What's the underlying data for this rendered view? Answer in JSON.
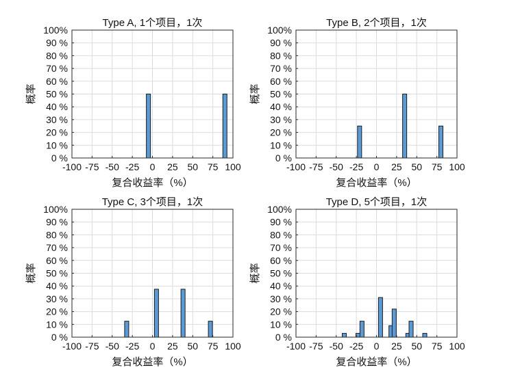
{
  "chart_data": [
    {
      "type": "bar",
      "title": "Type A, 1个项目，1次",
      "xlabel": "复合收益率（%）",
      "ylabel": "概率",
      "xlim": [
        -100,
        100
      ],
      "ylim": [
        0,
        100
      ],
      "xticks": [
        -100,
        -75,
        -50,
        -25,
        0,
        25,
        50,
        75,
        100
      ],
      "xtick_labels": [
        "-100",
        "-75",
        "-50",
        "-25",
        "0",
        "25",
        "50",
        "75",
        "100"
      ],
      "yticks": [
        0,
        10,
        20,
        30,
        40,
        50,
        60,
        70,
        80,
        90,
        100
      ],
      "ytick_labels": [
        "0 %",
        "10 %",
        "20 %",
        "30 %",
        "40 %",
        "50 %",
        "60 %",
        "70 %",
        "80 %",
        "90 %",
        "100%"
      ],
      "grid": true,
      "bars": [
        {
          "x": -5,
          "y": 50
        },
        {
          "x": 90,
          "y": 50
        }
      ]
    },
    {
      "type": "bar",
      "title": "Type B, 2个项目，1次",
      "xlabel": "复合收益率（%）",
      "ylabel": "概率",
      "xlim": [
        -100,
        100
      ],
      "ylim": [
        0,
        100
      ],
      "xticks": [
        -100,
        -75,
        -50,
        -25,
        0,
        25,
        50,
        75,
        100
      ],
      "xtick_labels": [
        "-100",
        "-75",
        "-50",
        "-25",
        "0",
        "25",
        "50",
        "75",
        "100"
      ],
      "yticks": [
        0,
        10,
        20,
        30,
        40,
        50,
        60,
        70,
        80,
        90,
        100
      ],
      "ytick_labels": [
        "0 %",
        "10 %",
        "20 %",
        "30 %",
        "40 %",
        "50 %",
        "60 %",
        "70 %",
        "80 %",
        "90 %",
        "100%"
      ],
      "grid": true,
      "bars": [
        {
          "x": -21,
          "y": 25
        },
        {
          "x": 35,
          "y": 50
        },
        {
          "x": 80,
          "y": 25
        }
      ]
    },
    {
      "type": "bar",
      "title": "Type C, 3个项目，1次",
      "xlabel": "复合收益率（%）",
      "ylabel": "概率",
      "xlim": [
        -100,
        100
      ],
      "ylim": [
        0,
        100
      ],
      "xticks": [
        -100,
        -75,
        -50,
        -25,
        0,
        25,
        50,
        75,
        100
      ],
      "xtick_labels": [
        "-100",
        "-75",
        "-50",
        "-25",
        "0",
        "25",
        "50",
        "75",
        "100"
      ],
      "yticks": [
        0,
        10,
        20,
        30,
        40,
        50,
        60,
        70,
        80,
        90,
        100
      ],
      "ytick_labels": [
        "0 %",
        "10 %",
        "20 %",
        "30 %",
        "40 %",
        "50 %",
        "60 %",
        "70 %",
        "80 %",
        "90 %",
        "100%"
      ],
      "grid": true,
      "bars": [
        {
          "x": -32,
          "y": 12.5
        },
        {
          "x": 5,
          "y": 37.5
        },
        {
          "x": 38,
          "y": 37.5
        },
        {
          "x": 72,
          "y": 12.5
        }
      ]
    },
    {
      "type": "bar",
      "title": "Type D, 5个项目，1次",
      "xlabel": "复合收益率（%）",
      "ylabel": "概率",
      "xlim": [
        -100,
        100
      ],
      "ylim": [
        0,
        100
      ],
      "xticks": [
        -100,
        -75,
        -50,
        -25,
        0,
        25,
        50,
        75,
        100
      ],
      "xtick_labels": [
        "-100",
        "-75",
        "-50",
        "-25",
        "0",
        "25",
        "50",
        "75",
        "100"
      ],
      "yticks": [
        0,
        10,
        20,
        30,
        40,
        50,
        60,
        70,
        80,
        90,
        100
      ],
      "ytick_labels": [
        "0 %",
        "10 %",
        "20 %",
        "30 %",
        "40 %",
        "50 %",
        "60 %",
        "70 %",
        "80 %",
        "90 %",
        "100%"
      ],
      "grid": true,
      "bars": [
        {
          "x": -40,
          "y": 3
        },
        {
          "x": -23,
          "y": 3
        },
        {
          "x": -18,
          "y": 12.5
        },
        {
          "x": 5,
          "y": 31
        },
        {
          "x": 18,
          "y": 9
        },
        {
          "x": 22,
          "y": 22
        },
        {
          "x": 39,
          "y": 3
        },
        {
          "x": 43,
          "y": 12.5
        },
        {
          "x": 60,
          "y": 3
        }
      ]
    }
  ],
  "style": {
    "bar_fill": "#5b9bd5",
    "bar_edge": "#1a1a1a",
    "grid_color": "#dcdcdc",
    "axis_color": "#262626"
  }
}
